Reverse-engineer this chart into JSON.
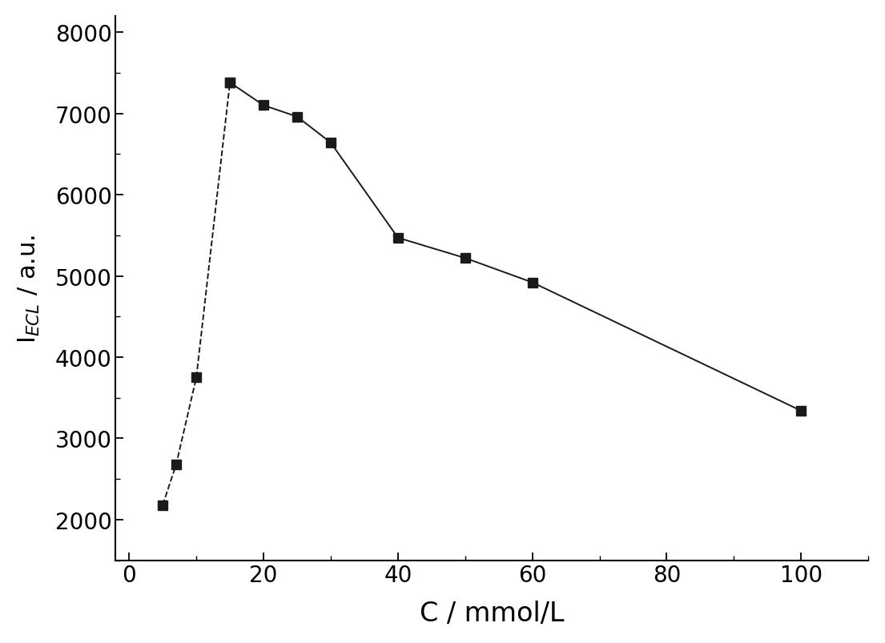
{
  "x": [
    5,
    7,
    10,
    15,
    20,
    25,
    30,
    40,
    50,
    60,
    100
  ],
  "y": [
    2180,
    2680,
    3750,
    7380,
    7100,
    6960,
    6640,
    5470,
    5220,
    4920,
    3340
  ],
  "dashed_end_index": 3,
  "marker": "s",
  "marker_size": 8,
  "marker_color": "#1a1a1a",
  "line_color": "#1a1a1a",
  "line_width": 1.4,
  "xlim": [
    -2,
    110
  ],
  "ylim": [
    1500,
    8200
  ],
  "xticks": [
    0,
    20,
    40,
    60,
    80,
    100
  ],
  "yticks": [
    2000,
    3000,
    4000,
    5000,
    6000,
    7000,
    8000
  ],
  "xlabel": "C / mmol/L",
  "ylabel": "I$_{ECL}$ / a.u.",
  "xlabel_fontsize": 24,
  "ylabel_fontsize": 22,
  "tick_fontsize": 20,
  "background_color": "#ffffff"
}
